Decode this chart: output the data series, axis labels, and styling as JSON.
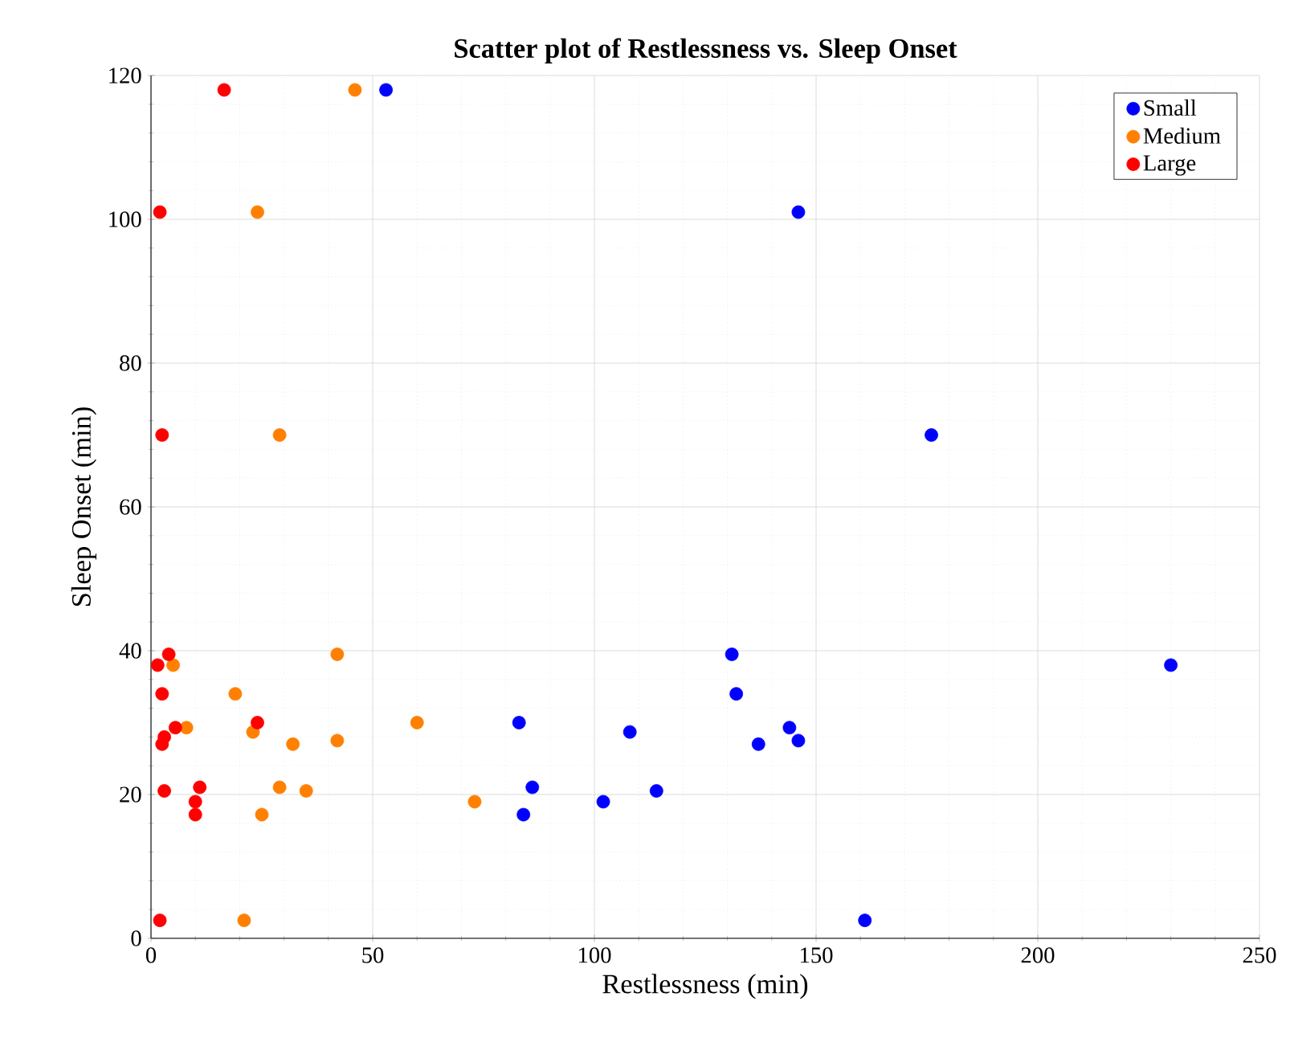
{
  "chart_data": {
    "type": "scatter",
    "title": "Scatter plot of Restlessness vs. Sleep Onset",
    "xlabel": "Restlessness (min)",
    "ylabel": "Sleep Onset (min)",
    "xlim": [
      0,
      250
    ],
    "ylim": [
      0,
      120
    ],
    "xticks": [
      0,
      50,
      100,
      150,
      200,
      250
    ],
    "yticks": [
      0,
      20,
      40,
      60,
      80,
      100,
      120
    ],
    "grid": true,
    "legend": "top right",
    "marker": "circle",
    "series": [
      {
        "name": "Small",
        "color": "#0000ff",
        "x": [
          53,
          146,
          176,
          230,
          131,
          132,
          83,
          108,
          137,
          144,
          146,
          86,
          114,
          102,
          84,
          161
        ],
        "values": [
          118,
          101,
          70,
          38,
          39.5,
          34,
          30,
          28.7,
          27,
          29.3,
          27.5,
          21,
          20.5,
          19,
          17.2,
          2.5
        ]
      },
      {
        "name": "Medium",
        "color": "#ff8000",
        "x": [
          46,
          24,
          29,
          5,
          42,
          19,
          8,
          23,
          32,
          42,
          60,
          29,
          35,
          73,
          25,
          21
        ],
        "values": [
          118,
          101,
          70,
          38,
          39.5,
          34,
          29.3,
          28.7,
          27,
          27.5,
          30,
          21,
          20.5,
          19,
          17.2,
          2.5
        ]
      },
      {
        "name": "Large",
        "color": "#ff0000",
        "x": [
          16.5,
          2,
          2.5,
          1.5,
          4,
          2.5,
          3,
          5.5,
          24,
          2.5,
          3,
          3,
          11,
          10,
          10,
          2
        ],
        "values": [
          118,
          101,
          70,
          38,
          39.5,
          34,
          null,
          29.3,
          30,
          27,
          28,
          20.5,
          21,
          19,
          17.2,
          2.5
        ]
      }
    ]
  }
}
